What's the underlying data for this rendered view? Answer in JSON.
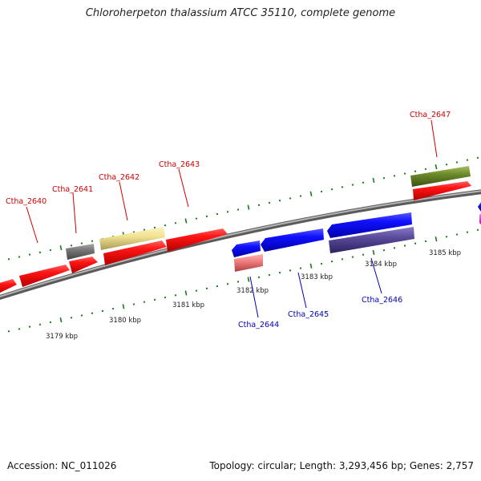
{
  "title": "Chloroherpeton thalassium ATCC 35110, complete genome",
  "footer": {
    "accession": "Accession: NC_011026",
    "summary": "Topology: circular; Length: 3,293,456 bp; Genes: 2,757"
  },
  "colors": {
    "forward_label": "#cc0000",
    "reverse_label": "#0000bb",
    "backbone": "#8c8c8c",
    "tick": "#1a7a1a"
  },
  "scale_labels": [
    "3179 kbp",
    "3180 kbp",
    "3181 kbp",
    "3182 kbp",
    "3183 kbp",
    "3184 kbp",
    "3185 kbp"
  ],
  "genes": [
    {
      "id": "Ctha_2640",
      "label": "Ctha_2640",
      "strand": "forward"
    },
    {
      "id": "Ctha_2641",
      "label": "Ctha_2641",
      "strand": "forward"
    },
    {
      "id": "Ctha_2642",
      "label": "Ctha_2642",
      "strand": "forward"
    },
    {
      "id": "Ctha_2643",
      "label": "Ctha_2643",
      "strand": "forward"
    },
    {
      "id": "Ctha_2644",
      "label": "Ctha_2644",
      "strand": "reverse"
    },
    {
      "id": "Ctha_2645",
      "label": "Ctha_2645",
      "strand": "reverse"
    },
    {
      "id": "Ctha_2646",
      "label": "Ctha_2646",
      "strand": "reverse"
    },
    {
      "id": "Ctha_2647",
      "label": "Ctha_2647",
      "strand": "forward"
    }
  ]
}
